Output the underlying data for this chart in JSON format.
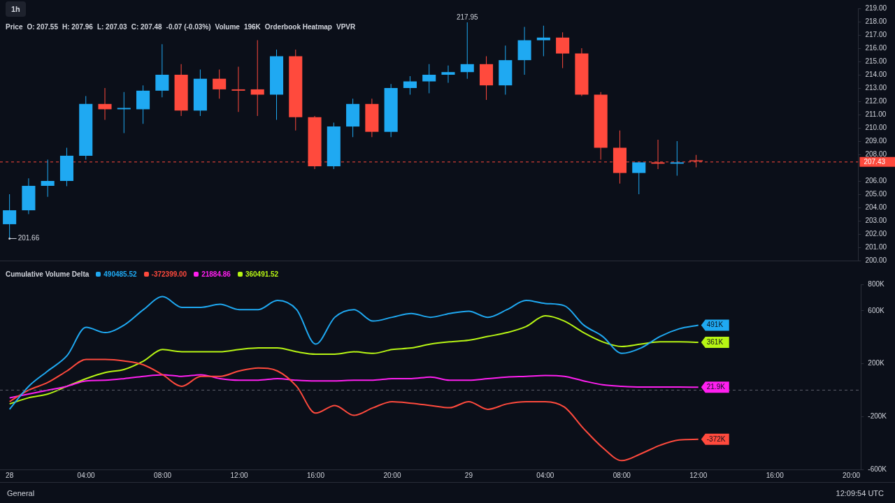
{
  "chart_data": [
    {
      "type": "candlestick",
      "title": "1h",
      "categories": [
        null,
        null,
        null,
        null,
        null,
        null,
        null,
        null,
        null,
        null,
        null,
        null,
        null,
        null,
        null,
        null,
        null,
        null,
        null,
        null,
        null,
        null,
        null,
        null,
        null,
        null,
        null,
        null,
        null,
        null,
        null,
        null,
        null,
        null,
        null,
        null,
        null,
        null,
        null,
        null,
        null,
        null,
        null,
        null,
        null
      ],
      "ohlc": [
        [
          202.74,
          205.0,
          201.66,
          203.79
        ],
        [
          203.79,
          206.2,
          203.5,
          205.63
        ],
        [
          205.63,
          207.6,
          204.8,
          206.0
        ],
        [
          206.0,
          208.5,
          205.6,
          207.9
        ],
        [
          207.9,
          212.4,
          207.6,
          211.8
        ],
        [
          211.8,
          213.0,
          210.6,
          211.4
        ],
        [
          211.4,
          212.7,
          209.6,
          211.5
        ],
        [
          211.4,
          213.2,
          210.3,
          212.8
        ],
        [
          212.8,
          216.3,
          212.3,
          214.0
        ],
        [
          214.0,
          214.8,
          210.9,
          211.3
        ],
        [
          211.3,
          214.4,
          210.9,
          213.7
        ],
        [
          213.7,
          214.4,
          212.2,
          212.9
        ],
        [
          212.9,
          214.6,
          211.2,
          212.8
        ],
        [
          212.9,
          216.6,
          210.9,
          212.5
        ],
        [
          212.5,
          215.9,
          210.6,
          215.4
        ],
        [
          215.4,
          215.9,
          209.8,
          210.8
        ],
        [
          210.8,
          210.9,
          206.9,
          207.1
        ],
        [
          207.1,
          210.4,
          206.9,
          210.1
        ],
        [
          210.1,
          212.2,
          209.3,
          211.8
        ],
        [
          211.8,
          212.2,
          209.3,
          209.7
        ],
        [
          209.7,
          213.3,
          209.3,
          213.0
        ],
        [
          213.0,
          213.9,
          212.5,
          213.5
        ],
        [
          213.5,
          214.8,
          212.6,
          214.0
        ],
        [
          214.0,
          214.7,
          213.4,
          214.2
        ],
        [
          214.2,
          217.95,
          213.7,
          214.8
        ],
        [
          214.8,
          215.4,
          212.1,
          213.2
        ],
        [
          213.2,
          216.2,
          212.5,
          215.1
        ],
        [
          215.1,
          217.6,
          214.0,
          216.6
        ],
        [
          216.6,
          217.7,
          215.4,
          216.8
        ],
        [
          216.8,
          217.2,
          214.5,
          215.6
        ],
        [
          215.6,
          216.0,
          212.4,
          212.5
        ],
        [
          212.5,
          212.7,
          207.6,
          208.5
        ],
        [
          208.5,
          209.8,
          205.8,
          206.6
        ],
        [
          206.6,
          207.4,
          205.0,
          207.4
        ],
        [
          207.4,
          209.1,
          206.9,
          207.3
        ],
        [
          207.3,
          209.0,
          206.4,
          207.4
        ],
        [
          207.55,
          207.96,
          207.03,
          207.48
        ],
        null,
        null,
        null,
        null,
        null,
        null,
        null,
        null
      ],
      "colors": [
        "#1fa9f2",
        "#1fa9f2",
        "#1fa9f2",
        "#1fa9f2",
        "#1fa9f2",
        "#ff4a3d",
        "#1fa9f2",
        "#1fa9f2",
        "#1fa9f2",
        "#ff4a3d",
        "#1fa9f2",
        "#ff4a3d",
        "#ff4a3d",
        "#ff4a3d",
        "#1fa9f2",
        "#ff4a3d",
        "#ff4a3d",
        "#1fa9f2",
        "#1fa9f2",
        "#ff4a3d",
        "#1fa9f2",
        "#1fa9f2",
        "#1fa9f2",
        "#1fa9f2",
        "#1fa9f2",
        "#ff4a3d",
        "#1fa9f2",
        "#1fa9f2",
        "#1fa9f2",
        "#ff4a3d",
        "#ff4a3d",
        "#ff4a3d",
        "#ff4a3d",
        "#1fa9f2",
        "#ff4a3d",
        "#1fa9f2",
        "#ff4a3d",
        null,
        null,
        null,
        null,
        null,
        null,
        null,
        null
      ],
      "ylim": [
        200,
        219
      ],
      "yticks": [
        {
          "value": 200,
          "label": "200.00"
        },
        {
          "value": 201,
          "label": "201.00"
        },
        {
          "value": 202,
          "label": "202.00"
        },
        {
          "value": 203,
          "label": "203.00"
        },
        {
          "value": 204,
          "label": "204.00"
        },
        {
          "value": 205,
          "label": "205.00"
        },
        {
          "value": 206,
          "label": "206.00"
        },
        {
          "value": 208,
          "label": "208.00"
        },
        {
          "value": 209,
          "label": "209.00"
        },
        {
          "value": 210,
          "label": "210.00"
        },
        {
          "value": 211,
          "label": "211.00"
        },
        {
          "value": 212,
          "label": "212.00"
        },
        {
          "value": 213,
          "label": "213.00"
        },
        {
          "value": 214,
          "label": "214.00"
        },
        {
          "value": 215,
          "label": "215.00"
        },
        {
          "value": 216,
          "label": "216.00"
        },
        {
          "value": 217,
          "label": "217.00"
        },
        {
          "value": 218,
          "label": "218.00"
        },
        {
          "value": 219,
          "label": "219.00"
        }
      ],
      "tick_labels": "y",
      "legend": false,
      "ref_lines": [
        {
          "axis": "y",
          "value": 207.43,
          "label": "207.43",
          "color": "#ff4a3d",
          "line_style": "dashed"
        }
      ],
      "annotations": [
        "Price",
        "O: 207.55",
        "H: 207.96",
        "L: 207.03",
        "C: 207.48",
        "-0.07 (-0.03%)",
        "Volume",
        "196K",
        "Orderbook Heatmap",
        "VPVR",
        {
          "text": "217.95",
          "y": 217.95
        },
        "201.66"
      ]
    },
    {
      "type": "line",
      "title": "Cumulative Volume Delta",
      "categories": [
        "28",
        null,
        null,
        null,
        "04:00",
        null,
        null,
        null,
        "08:00",
        null,
        null,
        null,
        "12:00",
        null,
        null,
        null,
        "16:00",
        null,
        null,
        null,
        "20:00",
        null,
        null,
        null,
        "29",
        null,
        null,
        null,
        "04:00",
        null,
        null,
        null,
        "08:00",
        null,
        null,
        null,
        "12:00",
        null,
        null,
        null,
        "16:00",
        null,
        null,
        null,
        "20:00"
      ],
      "series": [
        {
          "name": "490485.52",
          "color": "#1fa9f2",
          "values": [
            -145,
            29,
            145,
            260,
            475,
            435,
            493,
            609,
            707,
            626,
            626,
            649,
            609,
            609,
            678,
            609,
            348,
            551,
            609,
            522,
            551,
            580,
            551,
            580,
            597,
            551,
            609,
            678,
            655,
            638,
            493,
            406,
            278,
            319,
            406,
            464,
            491,
            null,
            null,
            null,
            null,
            null,
            null,
            null,
            null
          ],
          "value_labels": [
            null,
            null,
            null,
            null,
            null,
            null,
            null,
            null,
            null,
            null,
            null,
            null,
            null,
            null,
            null,
            null,
            null,
            null,
            null,
            null,
            null,
            null,
            null,
            null,
            null,
            null,
            null,
            null,
            null,
            null,
            null,
            null,
            null,
            null,
            null,
            null,
            "491K",
            null,
            null,
            null,
            null,
            null,
            null,
            null,
            null
          ]
        },
        {
          "name": "-372399.00",
          "color": "#ff4a3d",
          "values": [
            -87,
            0,
            58,
            145,
            232,
            232,
            220,
            191,
            116,
            29,
            104,
            104,
            145,
            168,
            145,
            29,
            -174,
            -116,
            -191,
            -133,
            -87,
            -99,
            -116,
            -133,
            -87,
            -145,
            -104,
            -87,
            -87,
            -128,
            -290,
            -435,
            -533,
            -481,
            -417,
            -377,
            -372,
            null,
            null,
            null,
            null,
            null,
            null,
            null,
            null
          ],
          "value_labels": [
            null,
            null,
            null,
            null,
            null,
            null,
            null,
            null,
            null,
            null,
            null,
            null,
            null,
            null,
            null,
            null,
            null,
            null,
            null,
            null,
            null,
            null,
            null,
            null,
            null,
            null,
            null,
            null,
            null,
            null,
            null,
            null,
            null,
            null,
            null,
            null,
            "-372K",
            null,
            null,
            null,
            null,
            null,
            null,
            null,
            null
          ]
        },
        {
          "name": "21884.86",
          "color": "#ff1ff0",
          "values": [
            -58,
            -29,
            0,
            29,
            70,
            75,
            87,
            104,
            116,
            104,
            116,
            87,
            75,
            75,
            87,
            75,
            70,
            70,
            75,
            75,
            87,
            87,
            99,
            75,
            75,
            87,
            99,
            104,
            110,
            104,
            70,
            41,
            29,
            23,
            23,
            23,
            21.9,
            null,
            null,
            null,
            null,
            null,
            null,
            null,
            null
          ],
          "value_labels": [
            null,
            null,
            null,
            null,
            null,
            null,
            null,
            null,
            null,
            null,
            null,
            null,
            null,
            null,
            null,
            null,
            null,
            null,
            null,
            null,
            null,
            null,
            null,
            null,
            null,
            null,
            null,
            null,
            null,
            null,
            null,
            null,
            null,
            null,
            null,
            null,
            "21.9K",
            null,
            null,
            null,
            null,
            null,
            null,
            null,
            null
          ]
        },
        {
          "name": "360491.52",
          "color": "#b7f514",
          "values": [
            -104,
            -58,
            -29,
            29,
            87,
            133,
            157,
            220,
            307,
            290,
            290,
            290,
            307,
            319,
            319,
            290,
            272,
            272,
            290,
            278,
            307,
            319,
            348,
            365,
            377,
            406,
            435,
            481,
            562,
            522,
            435,
            365,
            330,
            348,
            365,
            365,
            361,
            null,
            null,
            null,
            null,
            null,
            null,
            null,
            null
          ],
          "value_labels": [
            null,
            null,
            null,
            null,
            null,
            null,
            null,
            null,
            null,
            null,
            null,
            null,
            null,
            null,
            null,
            null,
            null,
            null,
            null,
            null,
            null,
            null,
            null,
            null,
            null,
            null,
            null,
            null,
            null,
            null,
            null,
            null,
            null,
            null,
            null,
            null,
            "361K",
            null,
            null,
            null,
            null,
            null,
            null,
            null,
            null
          ]
        }
      ],
      "ylim": [
        -600,
        800
      ],
      "yticks": [
        {
          "value": -600,
          "label": "-600K"
        },
        {
          "value": -200,
          "label": "-200K"
        },
        {
          "value": 200,
          "label": "200K"
        },
        {
          "value": 600,
          "label": "600K"
        },
        {
          "value": 800,
          "label": "800K"
        }
      ],
      "ref_lines": [
        {
          "axis": "y",
          "value": 0,
          "color": "#5d606b",
          "line_style": "dashed"
        }
      ],
      "legend": "top left",
      "marker": "none",
      "annotations": [
        "General",
        "12:09:54 UTC"
      ]
    }
  ]
}
